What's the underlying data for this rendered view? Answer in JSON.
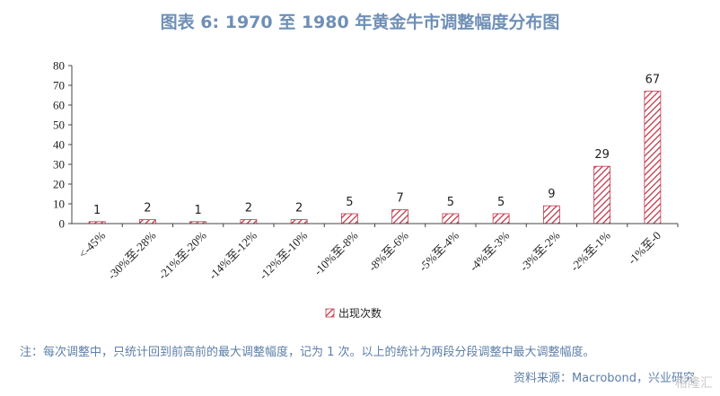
{
  "title": "图表 6:  1970 至 1980 年黄金牛市调整幅度分布图",
  "chart_data": {
    "type": "bar",
    "categories": [
      "<-45%",
      "-30%至-28%",
      "-21%至-20%",
      "-14%至-12%",
      "-12%至-10%",
      "-10%至-8%",
      "-8%至-6%",
      "-5%至-4%",
      "-4%至-3%",
      "-3%至-2%",
      "-2%至-1%",
      "-1%至-0"
    ],
    "series": [
      {
        "name": "出现次数",
        "values": [
          1,
          2,
          1,
          2,
          2,
          5,
          7,
          5,
          5,
          9,
          29,
          67
        ]
      }
    ],
    "ylim": [
      0,
      80
    ],
    "yticks": [
      0,
      10,
      20,
      30,
      40,
      50,
      60,
      70,
      80
    ],
    "xlabel": "",
    "ylabel": "",
    "legend_position": "bottom-center",
    "bar_color": "#c0394b",
    "grid": false
  },
  "note": "注：每次调整中，只统计回到前高前的最大调整幅度，记为 1 次。以上的统计为两段分段调整中最大调整幅度。",
  "source": "资料来源：Macrobond，兴业研究",
  "watermark": "格隆汇"
}
